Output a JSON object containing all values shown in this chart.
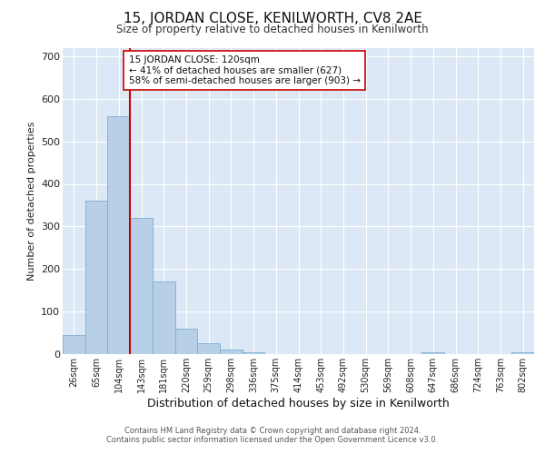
{
  "title": "15, JORDAN CLOSE, KENILWORTH, CV8 2AE",
  "subtitle": "Size of property relative to detached houses in Kenilworth",
  "xlabel": "Distribution of detached houses by size in Kenilworth",
  "ylabel": "Number of detached properties",
  "bar_labels": [
    "26sqm",
    "65sqm",
    "104sqm",
    "143sqm",
    "181sqm",
    "220sqm",
    "259sqm",
    "298sqm",
    "336sqm",
    "375sqm",
    "414sqm",
    "453sqm",
    "492sqm",
    "530sqm",
    "569sqm",
    "608sqm",
    "647sqm",
    "686sqm",
    "724sqm",
    "763sqm",
    "802sqm"
  ],
  "bar_values": [
    45,
    360,
    560,
    320,
    170,
    60,
    25,
    10,
    5,
    0,
    0,
    0,
    0,
    0,
    0,
    0,
    5,
    0,
    0,
    0,
    5
  ],
  "bar_color": "#b8cfe8",
  "bar_edge_color": "#7aadd4",
  "background_color": "#dce8f5",
  "grid_color": "#ffffff",
  "vline_color": "#cc0000",
  "annotation_text": "15 JORDAN CLOSE: 120sqm\n← 41% of detached houses are smaller (627)\n58% of semi-detached houses are larger (903) →",
  "annotation_box_color": "#ffffff",
  "annotation_box_edge": "#cc0000",
  "ylim": [
    0,
    720
  ],
  "yticks": [
    0,
    100,
    200,
    300,
    400,
    500,
    600,
    700
  ],
  "footer1": "Contains HM Land Registry data © Crown copyright and database right 2024.",
  "footer2": "Contains public sector information licensed under the Open Government Licence v3.0."
}
